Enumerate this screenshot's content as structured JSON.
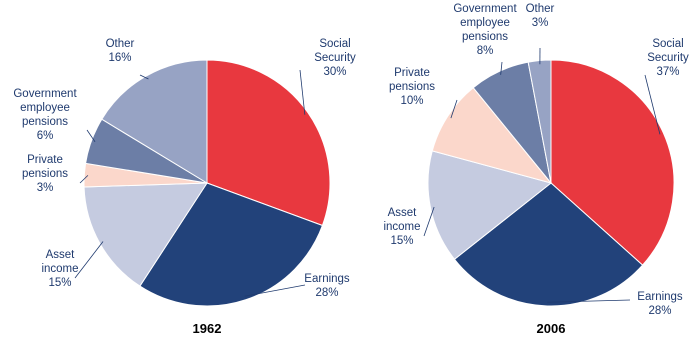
{
  "chart_data": [
    {
      "type": "pie",
      "title": "1962",
      "categories": [
        "Social Security",
        "Earnings",
        "Asset income",
        "Private pensions",
        "Government employee pensions",
        "Other"
      ],
      "values": [
        30,
        28,
        15,
        3,
        6,
        16
      ],
      "value_labels": [
        "30%",
        "28%",
        "15%",
        "3%",
        "6%",
        "16%"
      ],
      "colors": [
        "#e8383f",
        "#22427a",
        "#c5cbe0",
        "#fbd7cb",
        "#6c7ea6",
        "#97a3c4"
      ]
    },
    {
      "type": "pie",
      "title": "2006",
      "categories": [
        "Social Security",
        "Earnings",
        "Asset income",
        "Private pensions",
        "Government employee pensions",
        "Other"
      ],
      "values": [
        37,
        28,
        15,
        10,
        8,
        3
      ],
      "value_labels": [
        "37%",
        "28%",
        "15%",
        "10%",
        "8%",
        "3%"
      ],
      "colors": [
        "#e8383f",
        "#22427a",
        "#c5cbe0",
        "#fbd7cb",
        "#6c7ea6",
        "#97a3c4"
      ]
    }
  ]
}
